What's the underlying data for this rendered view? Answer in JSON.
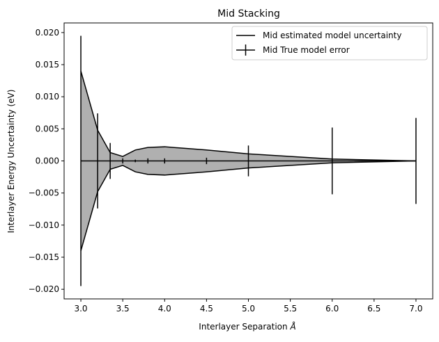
{
  "chart_data": {
    "type": "line",
    "title": "Mid Stacking",
    "xlabel": "Interlayer Separation",
    "xlabel_symbol": "Å",
    "ylabel": "Interlayer Energy Uncertainty (eV)",
    "xlim": [
      2.8,
      7.2
    ],
    "ylim": [
      -0.0215,
      0.0215
    ],
    "xticks": [
      3.0,
      3.5,
      4.0,
      4.5,
      5.0,
      5.5,
      6.0,
      6.5,
      7.0
    ],
    "xtick_labels": [
      "3.0",
      "3.5",
      "4.0",
      "4.5",
      "5.0",
      "5.5",
      "6.0",
      "6.5",
      "7.0"
    ],
    "yticks": [
      0.02,
      0.015,
      0.01,
      0.005,
      0.0,
      -0.005,
      -0.01,
      -0.015,
      -0.02
    ],
    "ytick_labels": [
      "0.020",
      "0.015",
      "0.010",
      "0.005",
      "0.000",
      "−0.005",
      "−0.010",
      "−0.015",
      "−0.020"
    ],
    "legend_position": "top-right",
    "colors": {
      "line": "#000000",
      "fill": "#b0b0b0"
    },
    "series": [
      {
        "name": "Mid estimated model uncertainty",
        "kind": "band",
        "x": [
          3.0,
          3.2,
          3.35,
          3.5,
          3.65,
          3.8,
          4.0,
          4.5,
          5.0,
          6.0,
          7.0
        ],
        "upper": [
          0.014,
          0.0048,
          0.0013,
          0.0007,
          0.0017,
          0.0021,
          0.0022,
          0.0017,
          0.0011,
          0.0003,
          0.0
        ],
        "lower": [
          -0.014,
          -0.0048,
          -0.0013,
          -0.0007,
          -0.0017,
          -0.0021,
          -0.0022,
          -0.0017,
          -0.0011,
          -0.0003,
          0.0
        ]
      },
      {
        "name": "Mid True model error",
        "kind": "errorbar",
        "x": [
          3.0,
          3.2,
          3.35,
          3.5,
          3.65,
          3.8,
          4.0,
          4.5,
          5.0,
          6.0,
          7.0
        ],
        "y": [
          0,
          0,
          0,
          0,
          0,
          0,
          0,
          0,
          0,
          0,
          0
        ],
        "yerr": [
          0.0195,
          0.0074,
          0.0028,
          0.0004,
          0.0002,
          0.0004,
          0.0004,
          0.0005,
          0.0024,
          0.0052,
          0.0067
        ]
      }
    ]
  }
}
